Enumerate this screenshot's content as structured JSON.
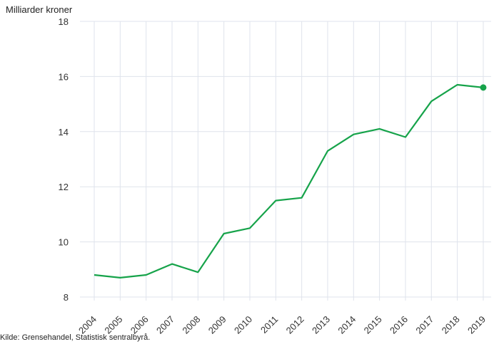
{
  "chart_data": {
    "type": "line",
    "ylabel": "Milliarder kroner",
    "ylim": [
      8,
      18
    ],
    "yticks": [
      8,
      10,
      12,
      14,
      16,
      18
    ],
    "x": [
      "2004",
      "2005",
      "2006",
      "2007",
      "2008",
      "2009",
      "2010",
      "2011",
      "2012",
      "2013",
      "2014",
      "2015",
      "2016",
      "2017",
      "2018",
      "2019"
    ],
    "series": [
      {
        "values": [
          8.8,
          8.7,
          8.8,
          9.2,
          8.9,
          10.3,
          10.5,
          11.5,
          11.6,
          13.3,
          13.9,
          14.1,
          13.8,
          15.1,
          15.7,
          15.6
        ]
      }
    ],
    "grid": true,
    "legend": "none",
    "line_color": "#16a34a",
    "source": "Kilde: Grensehandel, Statistisk sentralbyrå."
  }
}
